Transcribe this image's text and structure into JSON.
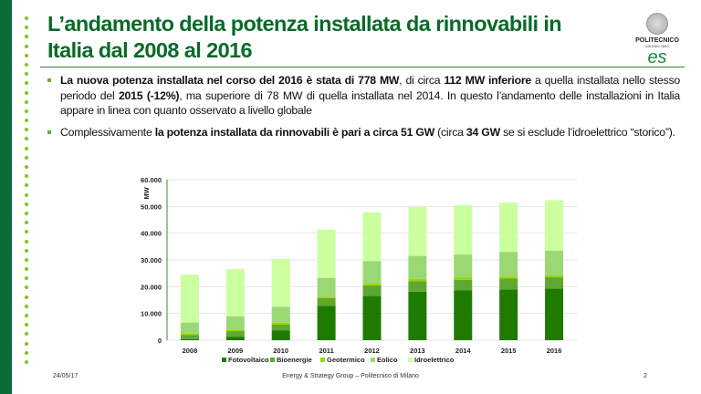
{
  "slide": {
    "title": "L’andamento della potenza installata da rinnovabili in Italia dal 2008 al 2016",
    "logo": {
      "text": "POLITECNICO",
      "subtext": "MILANO 1863",
      "mark": "es"
    },
    "bullets": [
      [
        {
          "t": "La nuova potenza installata nel corso del 2016 è stata di 778 MW",
          "b": true
        },
        {
          "t": ", di circa ",
          "b": false
        },
        {
          "t": "112 MW inferiore",
          "b": true
        },
        {
          "t": " a quella installata nello stesso periodo del ",
          "b": false
        },
        {
          "t": "2015 (-12%)",
          "b": true
        },
        {
          "t": ", ma superiore di 78 MW di quella installata nel 2014. In questo l’andamento delle installazioni in Italia appare in linea con quanto osservato a livello globale",
          "b": false
        }
      ],
      [
        {
          "t": "Complessivamente ",
          "b": false
        },
        {
          "t": "la potenza installata da rinnovabili è pari a circa 51 GW",
          "b": true
        },
        {
          "t": " (circa ",
          "b": false
        },
        {
          "t": "34 GW",
          "b": true
        },
        {
          "t": " se si esclude l’idroelettrico “storico”).",
          "b": false
        }
      ]
    ],
    "footer": {
      "date": "24/05/17",
      "center": "Energy & Strategy Group – Politecnico di Milano",
      "page": "2"
    },
    "colors": {
      "sidebar": "#0c6b38",
      "title": "#0a6a2a",
      "bullet": "#5cb82e"
    }
  },
  "chart_data": {
    "type": "bar",
    "stacked": true,
    "ylabel": "MW",
    "ylim": [
      0,
      60000
    ],
    "yticks": [
      "0",
      "10.000",
      "20.000",
      "30.000",
      "40.000",
      "50.000",
      "60.000"
    ],
    "grid": true,
    "legend": "bottom",
    "categories": [
      "2008",
      "2009",
      "2010",
      "2011",
      "2012",
      "2013",
      "2014",
      "2015",
      "2016"
    ],
    "series": [
      {
        "name": "Fotovoltaico",
        "color": "#1f7a00",
        "values": [
          400,
          1200,
          3700,
          12800,
          16600,
          18100,
          18700,
          19000,
          19300
        ]
      },
      {
        "name": "Bioenergie",
        "color": "#5ea832",
        "values": [
          1600,
          2200,
          2100,
          2900,
          3900,
          3900,
          3900,
          4000,
          4200
        ]
      },
      {
        "name": "Geotermico",
        "color": "#9ad600",
        "values": [
          500,
          500,
          800,
          600,
          900,
          900,
          900,
          800,
          700
        ]
      },
      {
        "name": "Eolico",
        "color": "#9ad874",
        "values": [
          4100,
          5000,
          5900,
          7000,
          8200,
          8600,
          8500,
          9200,
          9300
        ]
      },
      {
        "name": "Idroelettrico",
        "color": "#cbffa0",
        "values": [
          17900,
          17700,
          17900,
          18000,
          18200,
          18300,
          18500,
          18400,
          18800
        ]
      }
    ]
  }
}
